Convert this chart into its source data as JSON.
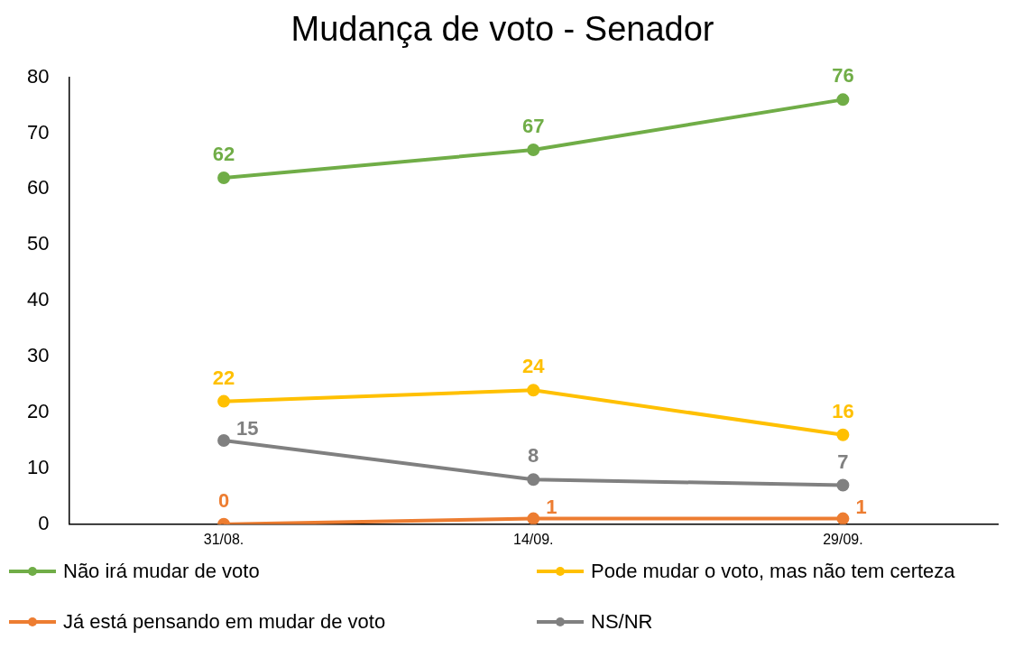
{
  "chart_data": {
    "type": "line",
    "title": "Mudança de voto - Senador",
    "categories": [
      "31/08.",
      "14/09.",
      "29/09."
    ],
    "series": [
      {
        "name": "Não irá mudar de voto",
        "color": "#70ad47",
        "values": [
          62,
          67,
          76
        ]
      },
      {
        "name": "Pode mudar o voto, mas não tem certeza",
        "color": "#ffc000",
        "values": [
          22,
          24,
          16
        ]
      },
      {
        "name": "Já está pensando em mudar de voto",
        "color": "#ed7d31",
        "values": [
          0,
          1,
          1
        ]
      },
      {
        "name": "NS/NR",
        "color": "#808080",
        "values": [
          15,
          8,
          7
        ]
      }
    ],
    "ylim": [
      0,
      80
    ],
    "yticks": [
      0,
      10,
      20,
      30,
      40,
      50,
      60,
      70,
      80
    ],
    "grid": false,
    "legend": "bottom",
    "marker": "circle",
    "line_style": "solid",
    "data_labels": true
  }
}
